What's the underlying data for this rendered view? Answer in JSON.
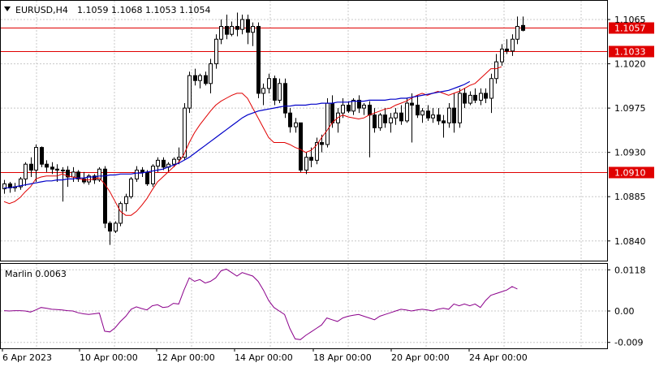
{
  "header": {
    "symbol": "EURUSD,H4",
    "ohlc": "1.1059 1.1068 1.1053 1.1054"
  },
  "indicator": {
    "label": "Marlin 0.0063"
  },
  "colors": {
    "bull": "#ffffff",
    "bear": "#000000",
    "outline": "#000000",
    "ma_fast": "#e00000",
    "ma_slow": "#0000c8",
    "level": "#e00000",
    "marlin": "#8b008b",
    "grid": "#c8c8c8"
  },
  "price_axis": {
    "ticks": [
      "1.1065",
      "1.1020",
      "1.0975",
      "1.0930",
      "1.0885",
      "1.0840"
    ],
    "range": [
      1.082,
      1.1084
    ]
  },
  "levels": [
    "1.1057",
    "1.1033",
    "1.0910"
  ],
  "indicator_axis": {
    "ticks": [
      "0.0118",
      "0.00",
      "-0.009"
    ],
    "range": [
      -0.0107,
      0.0135
    ]
  },
  "time_axis": [
    "6 Apr 2023",
    "10 Apr 00:00",
    "12 Apr 00:00",
    "14 Apr 00:00",
    "18 Apr 00:00",
    "20 Apr 00:00",
    "24 Apr 00:00"
  ],
  "chart_data": {
    "type": "candlestick",
    "candles": [
      [
        1.0893,
        1.0902,
        1.0888,
        1.0898
      ],
      [
        1.0898,
        1.09,
        1.0889,
        1.0894
      ],
      [
        1.0894,
        1.0899,
        1.089,
        1.0895
      ],
      [
        1.0895,
        1.0905,
        1.0892,
        1.0903
      ],
      [
        1.0903,
        1.092,
        1.0896,
        1.0918
      ],
      [
        1.0918,
        1.0925,
        1.0905,
        1.0912
      ],
      [
        1.0912,
        1.0938,
        1.09,
        1.0935
      ],
      [
        1.0935,
        1.0936,
        1.0915,
        1.0918
      ],
      [
        1.0918,
        1.0922,
        1.091,
        1.0915
      ],
      [
        1.0915,
        1.092,
        1.0908,
        1.0913
      ],
      [
        1.0913,
        1.0918,
        1.09,
        1.0912
      ],
      [
        1.0912,
        1.0915,
        1.088,
        1.0912
      ],
      [
        1.0912,
        1.0916,
        1.0895,
        1.0905
      ],
      [
        1.0905,
        1.0915,
        1.09,
        1.091
      ],
      [
        1.091,
        1.0912,
        1.09,
        1.0903
      ],
      [
        1.0903,
        1.091,
        1.0898,
        1.09
      ],
      [
        1.09,
        1.0908,
        1.0897,
        1.0906
      ],
      [
        1.0906,
        1.0908,
        1.0898,
        1.0902
      ],
      [
        1.0902,
        1.0915,
        1.09,
        1.0913
      ],
      [
        1.0913,
        1.0916,
        1.0853,
        1.0858
      ],
      [
        1.0858,
        1.086,
        1.0836,
        1.085
      ],
      [
        1.085,
        1.086,
        1.0848,
        1.0858
      ],
      [
        1.0858,
        1.088,
        1.0855,
        1.0878
      ],
      [
        1.0878,
        1.0888,
        1.087,
        1.0885
      ],
      [
        1.0885,
        1.0905,
        1.0883,
        1.0903
      ],
      [
        1.0903,
        1.0916,
        1.09,
        1.0912
      ],
      [
        1.0912,
        1.0915,
        1.0905,
        1.091
      ],
      [
        1.091,
        1.0912,
        1.0896,
        1.0898
      ],
      [
        1.0898,
        1.0918,
        1.0895,
        1.0916
      ],
      [
        1.0916,
        1.0925,
        1.091,
        1.0922
      ],
      [
        1.0922,
        1.0925,
        1.0912,
        1.0915
      ],
      [
        1.0915,
        1.092,
        1.091,
        1.0918
      ],
      [
        1.0918,
        1.0925,
        1.0915,
        1.0923
      ],
      [
        1.0923,
        1.0935,
        1.0918,
        1.0925
      ],
      [
        1.0925,
        1.098,
        1.0922,
        1.0975
      ],
      [
        1.0975,
        1.1012,
        1.097,
        1.1008
      ],
      [
        1.1008,
        1.1015,
        1.0998,
        1.1003
      ],
      [
        1.1003,
        1.101,
        1.0995,
        1.1008
      ],
      [
        1.1008,
        1.1012,
        1.0998,
        1.1
      ],
      [
        1.1,
        1.1025,
        1.099,
        1.102
      ],
      [
        1.102,
        1.105,
        1.1015,
        1.1045
      ],
      [
        1.1045,
        1.1065,
        1.104,
        1.1058
      ],
      [
        1.1058,
        1.107,
        1.1045,
        1.105
      ],
      [
        1.105,
        1.1063,
        1.1048,
        1.1058
      ],
      [
        1.1058,
        1.1072,
        1.1048,
        1.1055
      ],
      [
        1.1055,
        1.107,
        1.105,
        1.1065
      ],
      [
        1.1065,
        1.107,
        1.104,
        1.1052
      ],
      [
        1.1052,
        1.1062,
        1.1038,
        1.1058
      ],
      [
        1.1058,
        1.1062,
        1.0985,
        1.099
      ],
      [
        1.099,
        1.1,
        1.0978,
        1.0995
      ],
      [
        1.0995,
        1.101,
        1.099,
        1.1005
      ],
      [
        1.1005,
        1.1008,
        1.0978,
        1.0983
      ],
      [
        1.0983,
        1.1005,
        1.098,
        1.1
      ],
      [
        1.1,
        1.1005,
        1.0965,
        1.097
      ],
      [
        1.097,
        1.0975,
        1.095,
        1.0956
      ],
      [
        1.0956,
        1.0965,
        1.095,
        1.096
      ],
      [
        1.096,
        1.096,
        1.091,
        1.0912
      ],
      [
        1.0912,
        1.093,
        1.0908,
        1.0925
      ],
      [
        1.0925,
        1.0935,
        1.0915,
        1.0922
      ],
      [
        1.0922,
        1.0945,
        1.0918,
        1.094
      ],
      [
        1.094,
        1.0948,
        1.093,
        1.0938
      ],
      [
        1.0938,
        1.0985,
        1.0935,
        1.098
      ],
      [
        1.098,
        1.0988,
        1.0955,
        1.096
      ],
      [
        1.096,
        1.0975,
        1.095,
        1.097
      ],
      [
        1.097,
        1.0985,
        1.0965,
        1.0978
      ],
      [
        1.0978,
        1.0982,
        1.097,
        1.0972
      ],
      [
        1.0972,
        1.0985,
        1.0968,
        1.0983
      ],
      [
        1.0983,
        1.0988,
        1.097,
        1.0975
      ],
      [
        1.0975,
        1.098,
        1.0968,
        1.0978
      ],
      [
        1.0978,
        1.0982,
        1.0925,
        1.0968
      ],
      [
        1.0968,
        1.0975,
        1.095,
        1.0955
      ],
      [
        1.0955,
        1.097,
        1.0952,
        1.0968
      ],
      [
        1.0968,
        1.0975,
        1.0955,
        1.096
      ],
      [
        1.096,
        1.097,
        1.095,
        1.0965
      ],
      [
        1.0965,
        1.0975,
        1.0958,
        1.097
      ],
      [
        1.097,
        1.0978,
        1.0958,
        1.0962
      ],
      [
        1.0962,
        1.0985,
        1.096,
        1.098
      ],
      [
        1.098,
        1.099,
        1.094,
        1.0978
      ],
      [
        1.0978,
        1.0988,
        1.0965,
        1.0968
      ],
      [
        1.0968,
        1.0975,
        1.096,
        1.0972
      ],
      [
        1.0972,
        1.0978,
        1.0962,
        1.0965
      ],
      [
        1.0965,
        1.0975,
        1.096,
        1.0968
      ],
      [
        1.0968,
        1.0975,
        1.0958,
        1.0962
      ],
      [
        1.0962,
        1.0968,
        1.0945,
        1.096
      ],
      [
        1.096,
        1.098,
        1.0955,
        1.0975
      ],
      [
        1.0975,
        1.099,
        1.095,
        1.096
      ],
      [
        1.096,
        1.0995,
        1.0955,
        1.099
      ],
      [
        1.099,
        1.0995,
        1.0975,
        1.098
      ],
      [
        1.098,
        1.0992,
        1.0978,
        1.0988
      ],
      [
        1.0988,
        1.0995,
        1.098,
        1.0983
      ],
      [
        1.0983,
        1.0995,
        1.0978,
        1.099
      ],
      [
        1.099,
        1.0995,
        1.098,
        1.0985
      ],
      [
        1.0985,
        1.101,
        1.097,
        1.1005
      ],
      [
        1.1005,
        1.103,
        1.1,
        1.1022
      ],
      [
        1.1022,
        1.104,
        1.1018,
        1.1035
      ],
      [
        1.1035,
        1.1045,
        1.103,
        1.1033
      ],
      [
        1.1033,
        1.105,
        1.1028,
        1.1045
      ],
      [
        1.1045,
        1.1068,
        1.104,
        1.1058
      ],
      [
        1.1059,
        1.1068,
        1.1053,
        1.1054
      ]
    ],
    "marlin": [
      0.0001,
      0.0,
      0.0001,
      0.0001,
      0.0,
      -0.0003,
      0.0003,
      0.001,
      0.0008,
      0.0005,
      0.0004,
      0.0003,
      0.0001,
      0.0,
      -0.0005,
      -0.0008,
      -0.001,
      -0.0008,
      -0.0006,
      -0.0058,
      -0.006,
      -0.0048,
      -0.003,
      -0.0015,
      0.0005,
      0.0012,
      0.0007,
      0.0003,
      0.0015,
      0.0018,
      0.001,
      0.0012,
      0.0022,
      0.002,
      0.006,
      0.0095,
      0.0085,
      0.009,
      0.008,
      0.0085,
      0.0095,
      0.0115,
      0.012,
      0.011,
      0.01,
      0.011,
      0.0105,
      0.01,
      0.0085,
      0.006,
      0.003,
      0.001,
      0.0,
      -0.001,
      -0.005,
      -0.008,
      -0.0082,
      -0.007,
      -0.006,
      -0.005,
      -0.004,
      -0.002,
      -0.0025,
      -0.003,
      -0.002,
      -0.0015,
      -0.0012,
      -0.001,
      -0.0015,
      -0.002,
      -0.0025,
      -0.0015,
      -0.001,
      -0.0005,
      0.0,
      0.0005,
      0.0003,
      0.0,
      0.0003,
      0.0005,
      0.0003,
      0.0,
      0.0005,
      0.0008,
      0.0005,
      0.002,
      0.0015,
      0.002,
      0.0015,
      0.002,
      0.001,
      0.003,
      0.0045,
      0.005,
      0.0055,
      0.006,
      0.007,
      0.0063
    ],
    "ma_fast": [
      1.088,
      1.0878,
      1.088,
      1.0884,
      1.089,
      1.0895,
      1.0903,
      1.0905,
      1.0906,
      1.0906,
      1.0906,
      1.0908,
      1.0906,
      1.0905,
      1.0904,
      1.0902,
      1.0902,
      1.0903,
      1.0904,
      1.0898,
      1.089,
      1.088,
      1.087,
      1.0866,
      1.0866,
      1.087,
      1.0876,
      1.0883,
      1.0892,
      1.09,
      1.0905,
      1.091,
      1.0915,
      1.092,
      1.0928,
      1.094,
      1.095,
      1.0958,
      1.0965,
      1.0972,
      1.0978,
      1.0982,
      1.0985,
      1.0988,
      1.099,
      1.099,
      1.0985,
      1.0975,
      1.0965,
      1.0955,
      1.0945,
      1.094,
      1.094,
      1.094,
      1.0938,
      1.0935,
      1.0933,
      1.093,
      1.0932,
      1.0937,
      1.0945,
      1.0952,
      1.096,
      1.0965,
      1.0968,
      1.0966,
      1.0965,
      1.0964,
      1.0965,
      1.0968,
      1.097,
      1.0972,
      1.0974,
      1.0975,
      1.0978,
      1.098,
      1.0982,
      1.0985,
      1.0988,
      1.099,
      1.0988,
      1.099,
      1.0992,
      1.099,
      1.0988,
      1.099,
      1.0992,
      1.0995,
      1.0998,
      1.1,
      1.1005,
      1.101,
      1.1015,
      1.1015,
      1.1017
    ],
    "ma_slow": [
      1.0894,
      1.0894,
      1.0895,
      1.0896,
      1.0897,
      1.0898,
      1.0899,
      1.09,
      1.0901,
      1.0901,
      1.0902,
      1.0902,
      1.0903,
      1.0903,
      1.0904,
      1.0904,
      1.0905,
      1.0905,
      1.0906,
      1.0906,
      1.0907,
      1.0907,
      1.0908,
      1.0908,
      1.0908,
      1.0909,
      1.0909,
      1.091,
      1.0911,
      1.0912,
      1.0913,
      1.0915,
      1.0917,
      1.0919,
      1.0922,
      1.0925,
      1.0929,
      1.0933,
      1.0937,
      1.0941,
      1.0945,
      1.0949,
      1.0953,
      1.0957,
      1.0961,
      1.0965,
      1.0968,
      1.097,
      1.0972,
      1.0973,
      1.0974,
      1.0975,
      1.0976,
      1.0977,
      1.0977,
      1.0978,
      1.0978,
      1.0978,
      1.0979,
      1.0979,
      1.098,
      1.098,
      1.098,
      1.0981,
      1.0981,
      1.0981,
      1.0982,
      1.0982,
      1.0982,
      1.0983,
      1.0983,
      1.0983,
      1.0983,
      1.0984,
      1.0984,
      1.0985,
      1.0985,
      1.0986,
      1.0987,
      1.0988,
      1.0989,
      1.099,
      1.0991,
      1.0992,
      1.0993,
      1.0995,
      1.0997,
      1.0999,
      1.1002
    ]
  }
}
